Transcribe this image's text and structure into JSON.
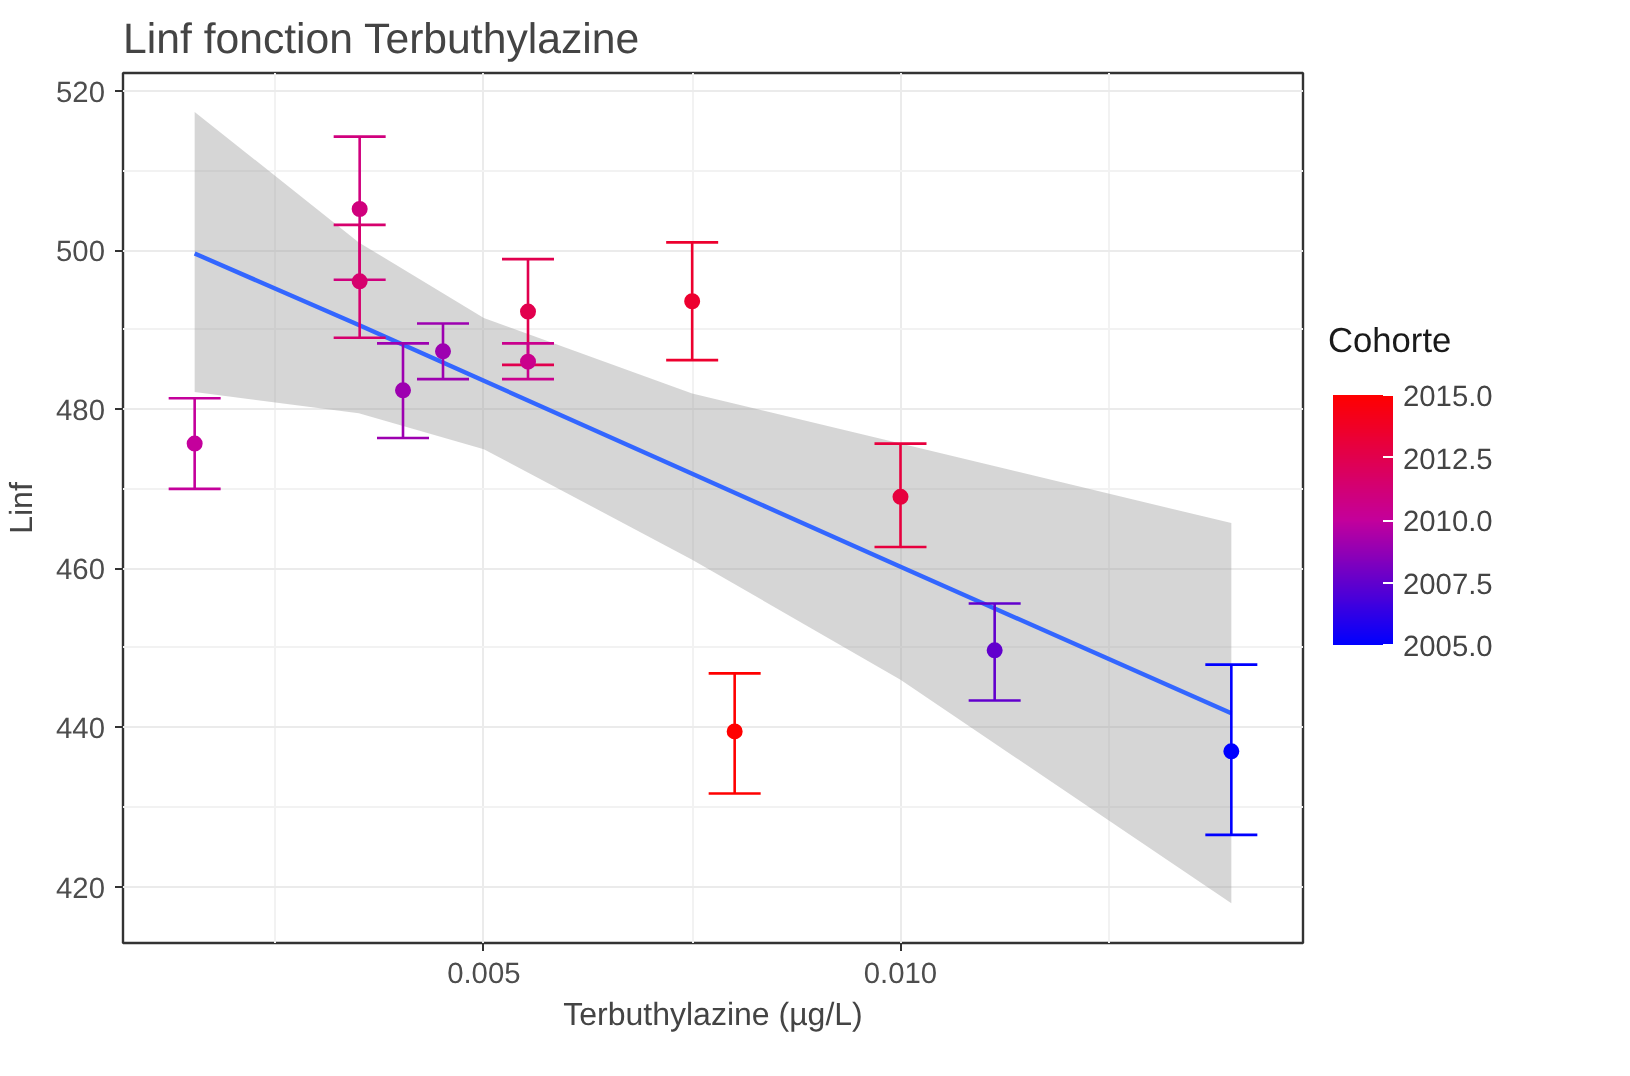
{
  "chart_data": {
    "type": "scatter",
    "title": "Linf fonction Terbuthylazine",
    "xlabel": "Terbuthylazine (µg/L)",
    "ylabel": "Linf",
    "clabel": "Cohorte",
    "xlim": [
      0.00067,
      0.01483
    ],
    "ylim": [
      412.9,
      522.3
    ],
    "xticks": [
      {
        "value": 0.0025,
        "label": null
      },
      {
        "value": 0.005,
        "label": "0.005"
      },
      {
        "value": 0.0075,
        "label": null
      },
      {
        "value": 0.01,
        "label": "0.010"
      },
      {
        "value": 0.0125,
        "label": null
      }
    ],
    "yticks": [
      420,
      {
        "value": 430,
        "label": null
      },
      440,
      {
        "value": 450,
        "label": null
      },
      460,
      {
        "value": 470,
        "label": null
      },
      480,
      {
        "value": 490,
        "label": null
      },
      500,
      {
        "value": 510,
        "label": null
      },
      520
    ],
    "clim": [
      2005,
      2015
    ],
    "cticks": [
      {
        "value": 2005,
        "label": "2005.0"
      },
      {
        "value": 2007.5,
        "label": "2007.5"
      },
      {
        "value": 2010,
        "label": "2010.0"
      },
      {
        "value": 2012.5,
        "label": "2012.5"
      },
      {
        "value": 2015,
        "label": "2015.0"
      }
    ],
    "colors": [
      "#0000ff",
      "#c4009c",
      "#ff0000"
    ],
    "grid": true,
    "series": [
      {
        "marker": "circle",
        "colors": [
          "#c4009c",
          "#d0007d",
          "#d6006d",
          "#9d00b0",
          "#9d00b0",
          "#e2004e",
          "#ca008c",
          "#ed002f",
          "#ff0000",
          "#e7003e",
          "#6200cd",
          "#0000ff"
        ],
        "x": [
          0.00153,
          0.00351,
          0.00351,
          0.00403,
          0.00451,
          0.00553,
          0.00553,
          0.0075,
          0.00801,
          0.01,
          0.01113,
          0.01397
        ],
        "values": [
          475.7,
          505.2,
          496.1,
          482.4,
          487.3,
          492.3,
          486.0,
          493.6,
          439.5,
          469.0,
          449.7,
          437.0
        ],
        "errors": [
          [
            470.0,
            481.4
          ],
          [
            496.3,
            514.3
          ],
          [
            489.0,
            503.2
          ],
          [
            476.4,
            488.3
          ],
          [
            483.8,
            490.8
          ],
          [
            485.6,
            498.9
          ],
          [
            483.8,
            488.3
          ],
          [
            486.2,
            501.0
          ],
          [
            431.7,
            446.8
          ],
          [
            462.7,
            475.7
          ],
          [
            443.4,
            455.6
          ],
          [
            426.5,
            447.9
          ]
        ],
        "cvalues": [
          2010,
          2011,
          2011.5,
          2009,
          2009,
          2012.5,
          2010.5,
          2013.5,
          2015,
          2013,
          2007.5,
          2005
        ]
      },
      {
        "type": "line",
        "color": "#3366ff",
        "x": [
          0.00153,
          0.0035,
          0.005,
          0.0075,
          0.01,
          0.01397
        ],
        "values": [
          499.6,
          490.6,
          483.6,
          471.9,
          460.2,
          441.8
        ],
        "lower": [
          482.2,
          479.5,
          475.0,
          461.1,
          446.0,
          417.9
        ],
        "upper": [
          517.4,
          501.0,
          491.5,
          482.0,
          475.7,
          465.7
        ]
      }
    ]
  }
}
